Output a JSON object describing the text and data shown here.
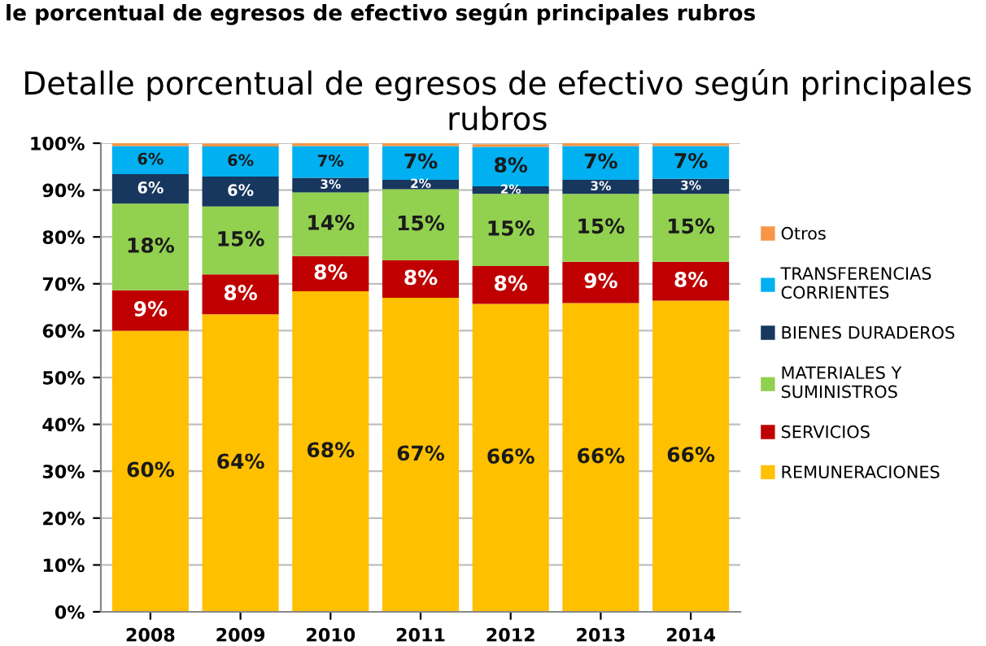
{
  "chart_data": {
    "type": "bar",
    "stacked": true,
    "title": "Detalle porcentual de egresos de efectivo según principales rubros",
    "annotations": [
      "le porcentual de egresos de efectivo según principales rubros"
    ],
    "categories": [
      "2008",
      "2009",
      "2010",
      "2011",
      "2012",
      "2013",
      "2014"
    ],
    "series": [
      {
        "name": "REMUNERACIONES",
        "color": "#ffc000",
        "values": [
          60.0,
          63.5,
          68.4,
          67.0,
          65.7,
          65.9,
          66.4
        ],
        "value_labels": [
          "60%",
          "64%",
          "68%",
          "67%",
          "66%",
          "66%",
          "66%"
        ]
      },
      {
        "name": "SERVICIOS",
        "color": "#c00000",
        "values": [
          8.6,
          8.5,
          7.5,
          8.0,
          8.1,
          8.8,
          8.3
        ],
        "value_labels": [
          "9%",
          "8%",
          "8%",
          "8%",
          "8%",
          "9%",
          "8%"
        ]
      },
      {
        "name": "MATERIALES Y SUMINISTROS",
        "color": "#92d050",
        "values": [
          18.5,
          14.5,
          13.6,
          15.2,
          15.4,
          14.5,
          14.5
        ],
        "value_labels": [
          "18%",
          "15%",
          "14%",
          "15%",
          "15%",
          "15%",
          "15%"
        ]
      },
      {
        "name": "BIENES DURADEROS",
        "color": "#17375e",
        "values": [
          6.3,
          6.4,
          3.1,
          2.0,
          1.6,
          3.0,
          3.2
        ],
        "value_labels": [
          "6%",
          "6%",
          "3%",
          "2%",
          "2%",
          "3%",
          "3%"
        ]
      },
      {
        "name": "TRANSFERENCIAS CORRIENTES",
        "color": "#00b0f0",
        "values": [
          6.0,
          6.4,
          6.8,
          7.2,
          8.4,
          7.2,
          7.0
        ],
        "value_labels": [
          "6%",
          "6%",
          "7%",
          "7%",
          "8%",
          "7%",
          "7%"
        ]
      },
      {
        "name": "Otros",
        "color": "#f79646",
        "values": [
          0.6,
          0.6,
          0.6,
          0.6,
          0.6,
          0.6,
          0.6
        ]
      }
    ],
    "ylim": [
      0,
      100
    ],
    "yticks": [
      {
        "value": 0,
        "label": "0%"
      },
      {
        "value": 10,
        "label": "10%"
      },
      {
        "value": 20,
        "label": "20%"
      },
      {
        "value": 30,
        "label": "30%"
      },
      {
        "value": 40,
        "label": "40%"
      },
      {
        "value": 50,
        "label": "50%"
      },
      {
        "value": 60,
        "label": "60%"
      },
      {
        "value": 70,
        "label": "70%"
      },
      {
        "value": 80,
        "label": "80%"
      },
      {
        "value": 90,
        "label": "90%"
      },
      {
        "value": 100,
        "label": "100%"
      }
    ],
    "grid": "y",
    "legend": "right"
  }
}
